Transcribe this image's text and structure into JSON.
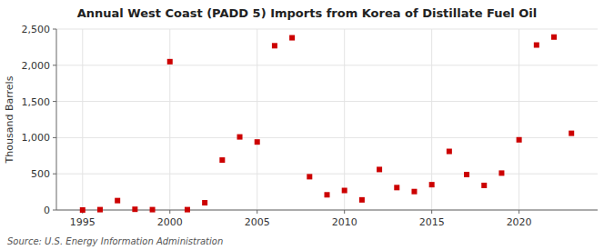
{
  "chart_data": {
    "type": "scatter",
    "title": "Annual West Coast (PADD 5) Imports from Korea of Distillate Fuel Oil",
    "ylabel": "Thousand Barrels",
    "annotations": [
      "Source: U.S. Energy Information Administration"
    ],
    "x": [
      1995,
      1996,
      1997,
      1998,
      1999,
      2000,
      2001,
      2002,
      2003,
      2004,
      2005,
      2006,
      2007,
      2008,
      2009,
      2010,
      2011,
      2012,
      2013,
      2014,
      2015,
      2016,
      2017,
      2018,
      2019,
      2020,
      2021,
      2022,
      2023
    ],
    "values": [
      0,
      5,
      130,
      10,
      5,
      2050,
      5,
      100,
      690,
      1010,
      940,
      2270,
      2380,
      460,
      210,
      270,
      140,
      560,
      310,
      255,
      350,
      810,
      490,
      340,
      510,
      970,
      2280,
      2390,
      1060
    ],
    "color": "#cc0000",
    "marker": "square",
    "xlim": [
      1993.5,
      2024.5
    ],
    "xticks": [
      1995,
      2000,
      2005,
      2010,
      2015,
      2020
    ],
    "ylim": [
      0,
      2500
    ],
    "yticks": [
      0,
      500,
      {
        "value": 1000,
        "label": "1,000"
      },
      {
        "value": 1500,
        "label": "1,500"
      },
      {
        "value": 2000,
        "label": "2,000"
      },
      {
        "value": 2500,
        "label": "2,500"
      }
    ],
    "grid": true
  }
}
